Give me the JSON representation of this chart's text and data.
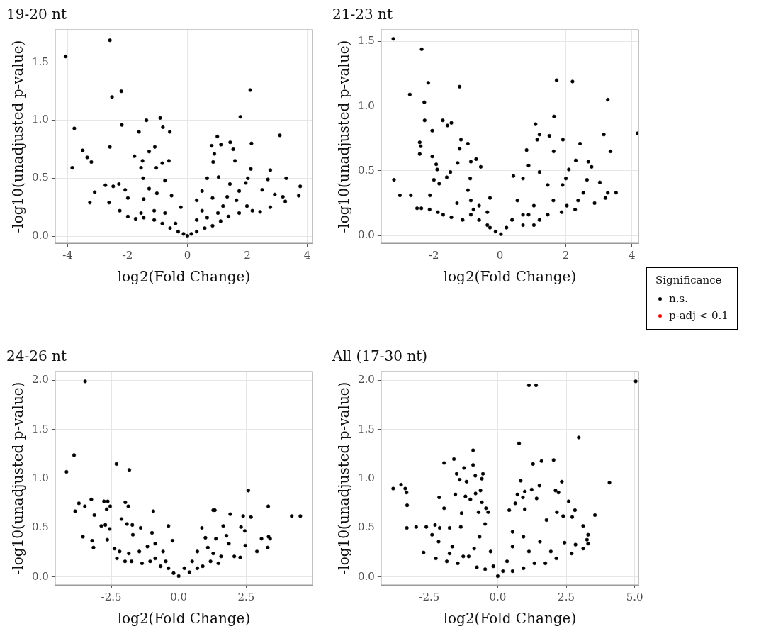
{
  "chart_data": [
    {
      "type": "scatter",
      "title": "19-20 nt",
      "xlabel": "log2(Fold Change)",
      "ylabel": "-log10(unadjusted p-value)",
      "xlim": [
        -4.42,
        4.18
      ],
      "ylim": [
        -0.06,
        1.78
      ],
      "xticks": [
        -4,
        -2,
        0,
        2,
        4
      ],
      "yticks": [
        {
          "value": 0,
          "label": "0.0"
        },
        {
          "value": 0.5,
          "label": "0.5"
        },
        {
          "value": 1,
          "label": "1.0"
        },
        {
          "value": 1.5,
          "label": "1.5"
        }
      ],
      "grid": true,
      "marker": "circle",
      "legend": false,
      "series": [
        {
          "color": "#000000",
          "x": [
            -4.07,
            -2.59,
            2.1,
            -2.21,
            -2.52,
            1.77,
            -0.91,
            -1.37,
            -3.78,
            -0.82,
            -2.19,
            -0.59,
            -1.62,
            3.09,
            1.0,
            1.43,
            2.14,
            -2.59,
            0.81,
            1.12,
            -1.09,
            -3.5,
            1.53,
            -1.28,
            -3.35,
            -1.77,
            -3.21,
            -1.5,
            -0.84,
            -0.62,
            0.9,
            1.59,
            0.86,
            -3.85,
            2.12,
            2.77,
            -1.55,
            -1.04,
            3.3,
            2.02,
            2.69,
            3.77,
            3.72,
            0.66,
            1.04,
            -0.75,
            -1.48,
            -2.74,
            -2.48,
            -2.29,
            -3.1,
            -3.26,
            -2.62,
            -2.08,
            2.5,
            2.92,
            3.19,
            3.27,
            2.77,
            2.43,
            1.95,
            1.73,
            1.64,
            1.33,
            1.42,
            0.84,
            0.49,
            0.31,
            -0.22,
            -0.53,
            -1.02,
            -1.28,
            -1.46,
            -1.99,
            -2.26,
            -1.99,
            -1.73,
            -1.46,
            -1.11,
            -0.84,
            -0.58,
            -0.31,
            -0.13,
            0,
            0.13,
            0.31,
            0.58,
            0.84,
            1.11,
            1.37,
            1.73,
            2.17,
            0.49,
            0.66,
            -0.75,
            -1.11,
            -1.55,
            0.31,
            -0.4,
            1.02,
            1.19,
            1.99
          ],
          "values": [
            1.55,
            1.69,
            1.26,
            1.25,
            1.2,
            1.03,
            1.02,
            1.0,
            0.93,
            0.94,
            0.96,
            0.9,
            0.9,
            0.87,
            0.86,
            0.81,
            0.8,
            0.77,
            0.78,
            0.79,
            0.77,
            0.74,
            0.75,
            0.73,
            0.68,
            0.69,
            0.64,
            0.65,
            0.63,
            0.65,
            0.71,
            0.65,
            0.64,
            0.59,
            0.58,
            0.57,
            0.59,
            0.59,
            0.5,
            0.5,
            0.49,
            0.43,
            0.35,
            0.5,
            0.51,
            0.48,
            0.5,
            0.44,
            0.43,
            0.45,
            0.38,
            0.29,
            0.29,
            0.4,
            0.4,
            0.36,
            0.34,
            0.3,
            0.25,
            0.21,
            0.46,
            0.39,
            0.31,
            0.34,
            0.45,
            0.33,
            0.39,
            0.31,
            0.25,
            0.35,
            0.37,
            0.41,
            0.32,
            0.33,
            0.22,
            0.17,
            0.15,
            0.16,
            0.14,
            0.11,
            0.07,
            0.04,
            0.02,
            0.004,
            0.02,
            0.04,
            0.07,
            0.09,
            0.13,
            0.17,
            0.2,
            0.22,
            0.22,
            0.16,
            0.2,
            0.22,
            0.2,
            0.14,
            0.11,
            0.2,
            0.26,
            0.26
          ]
        }
      ]
    },
    {
      "type": "scatter",
      "title": "21-23 nt",
      "xlabel": "log2(Fold Change)",
      "ylabel": "-log10(unadjusted p-value)",
      "xlim": [
        -3.6,
        4.2
      ],
      "ylim": [
        -0.06,
        1.59
      ],
      "xticks": [
        -2,
        0,
        2,
        4
      ],
      "yticks": [
        {
          "value": 0,
          "label": "0.0"
        },
        {
          "value": 0.5,
          "label": "0.5"
        },
        {
          "value": 1,
          "label": "1.0"
        },
        {
          "value": 1.5,
          "label": "1.5"
        }
      ],
      "grid": true,
      "marker": "circle",
      "legend": "right",
      "legend_title": "Significance",
      "series": [
        {
          "name": "n.s.",
          "color": "#000000",
          "x": [
            -3.23,
            -2.37,
            -2.17,
            -1.22,
            1.72,
            2.2,
            -2.73,
            3.27,
            -2.29,
            4.17,
            -2.28,
            -1.73,
            -1.59,
            -1.47,
            1.64,
            1.08,
            -2.05,
            3.15,
            1.2,
            1.5,
            1.91,
            1.13,
            -1.18,
            -2.43,
            -2.4,
            -0.97,
            2.43,
            -1.22,
            3.35,
            0.81,
            -2.43,
            1.63,
            -2.05,
            -0.72,
            -0.88,
            -1.93,
            -1.28,
            2.3,
            -1.9,
            -0.58,
            0.87,
            2.09,
            2.78,
            2.68,
            1.2,
            -1.5,
            -3.21,
            -3.03,
            -2.7,
            -2.12,
            -2.0,
            -1.84,
            -1.61,
            -0.9,
            0.41,
            0.7,
            1.45,
            1.9,
            2.0,
            2.64,
            3.03,
            3.52,
            3.27,
            2.87,
            3.2,
            2.53,
            2.37,
            2.28,
            2.03,
            1.87,
            1.62,
            1.45,
            1.2,
            0.87,
            1.03,
            0.7,
            0.53,
            0.37,
            0.2,
            0.03,
            -0.13,
            -0.38,
            -0.63,
            -0.88,
            -1.13,
            -1.47,
            -1.72,
            -1.88,
            -2.13,
            -2.38,
            -2.51,
            -1.3,
            -0.88,
            -0.63,
            -0.38,
            -0.3,
            -0.97,
            -0.8,
            0.7,
            1.03,
            -0.3
          ],
          "values": [
            1.52,
            1.44,
            1.18,
            1.15,
            1.2,
            1.19,
            1.09,
            1.05,
            1.03,
            0.79,
            0.89,
            0.89,
            0.85,
            0.87,
            0.92,
            0.86,
            0.81,
            0.78,
            0.78,
            0.77,
            0.74,
            0.74,
            0.74,
            0.72,
            0.69,
            0.71,
            0.71,
            0.67,
            0.65,
            0.66,
            0.63,
            0.65,
            0.61,
            0.59,
            0.57,
            0.55,
            0.56,
            0.58,
            0.51,
            0.53,
            0.54,
            0.51,
            0.53,
            0.57,
            0.49,
            0.49,
            0.43,
            0.31,
            0.31,
            0.31,
            0.43,
            0.4,
            0.45,
            0.44,
            0.46,
            0.44,
            0.39,
            0.39,
            0.44,
            0.43,
            0.41,
            0.33,
            0.33,
            0.25,
            0.29,
            0.33,
            0.27,
            0.2,
            0.23,
            0.18,
            0.27,
            0.16,
            0.12,
            0.16,
            0.23,
            0.16,
            0.27,
            0.12,
            0.06,
            0.01,
            0.03,
            0.08,
            0.12,
            0.16,
            0.12,
            0.14,
            0.16,
            0.18,
            0.2,
            0.21,
            0.21,
            0.25,
            0.27,
            0.23,
            0.18,
            0.29,
            0.35,
            0.2,
            0.08,
            0.08,
            0.06
          ]
        },
        {
          "name": "p-adj < 0.1",
          "color": "#ff0000"
        }
      ]
    },
    {
      "type": "scatter",
      "title": "24-26 nt",
      "xlabel": "log2(Fold Change)",
      "ylabel": "-log10(unadjusted p-value)",
      "xlim": [
        -4.58,
        4.96
      ],
      "ylim": [
        -0.08,
        2.09
      ],
      "xticks": [
        {
          "value": -2.5,
          "label": "-2.5"
        },
        {
          "value": 0,
          "label": "0.0"
        },
        {
          "value": 2.5,
          "label": "2.5"
        }
      ],
      "yticks": [
        {
          "value": 0,
          "label": "0.0"
        },
        {
          "value": 0.5,
          "label": "0.5"
        },
        {
          "value": 1,
          "label": "1.0"
        },
        {
          "value": 1.5,
          "label": "1.5"
        },
        {
          "value": 2,
          "label": "2.0"
        }
      ],
      "grid": true,
      "marker": "circle",
      "legend": false,
      "series": [
        {
          "color": "#000000",
          "x": [
            -3.47,
            -3.88,
            -4.16,
            -2.31,
            -1.83,
            2.58,
            -3.24,
            -3.7,
            -3.48,
            -3.84,
            -2.77,
            -2.63,
            -2.54,
            -2.67,
            -1.98,
            -1.87,
            -0.94,
            -3.13,
            3.32,
            1.28,
            1.34,
            1.91,
            2.39,
            2.68,
            4.19,
            4.51,
            -2.12,
            -2.87,
            -2.72,
            -2.56,
            -1.92,
            -1.72,
            -1.41,
            -0.38,
            0.86,
            1.65,
            2.31,
            2.45,
            -3.55,
            -3.21,
            -3.16,
            -2.65,
            -0.99,
            -0.23,
            -1.7,
            3.33,
            3.39,
            3.07,
            3.3,
            2.9,
            2.47,
            2.28,
            1.77,
            1.38,
            0.99,
            1.08,
            1.86,
            2.06,
            1.57,
            1.28,
            0.69,
            0.5,
            0.21,
            0,
            -0.19,
            -0.38,
            -0.67,
            -0.87,
            -1.06,
            -1.36,
            -1.75,
            -1.99,
            -2.29,
            -2.38,
            -2.19,
            -1.85,
            -1.46,
            -1.16,
            -0.87,
            -0.58,
            -0.48,
            0.89,
            1.18,
            1.47,
            0.69,
            0.4
          ],
          "values": [
            1.99,
            1.24,
            1.07,
            1.15,
            1.09,
            0.88,
            0.79,
            0.75,
            0.72,
            0.67,
            0.77,
            0.77,
            0.72,
            0.69,
            0.76,
            0.72,
            0.67,
            0.63,
            0.72,
            0.68,
            0.68,
            0.64,
            0.62,
            0.61,
            0.62,
            0.62,
            0.59,
            0.52,
            0.53,
            0.49,
            0.54,
            0.53,
            0.5,
            0.52,
            0.5,
            0.52,
            0.51,
            0.47,
            0.41,
            0.37,
            0.3,
            0.38,
            0.45,
            0.37,
            0.43,
            0.41,
            0.39,
            0.39,
            0.3,
            0.26,
            0.32,
            0.2,
            0.42,
            0.39,
            0.4,
            0.3,
            0.34,
            0.21,
            0.21,
            0.24,
            0.26,
            0.16,
            0.09,
            0.01,
            0.04,
            0.09,
            0.11,
            0.19,
            0.16,
            0.14,
            0.16,
            0.16,
            0.19,
            0.29,
            0.26,
            0.24,
            0.26,
            0.31,
            0.34,
            0.26,
            0.16,
            0.11,
            0.16,
            0.14,
            0.09,
            0.05
          ]
        }
      ]
    },
    {
      "type": "scatter",
      "title": "All (17-30 nt)",
      "xlabel": "log2(Fold Change)",
      "ylabel": "-log10(unadjusted p-value)",
      "xlim": [
        -4.26,
        5.14
      ],
      "ylim": [
        -0.08,
        2.09
      ],
      "xticks": [
        {
          "value": -2.5,
          "label": "-2.5"
        },
        {
          "value": 0,
          "label": "0.0"
        },
        {
          "value": 2.5,
          "label": "2.5"
        },
        {
          "value": 5,
          "label": "5.0"
        }
      ],
      "yticks": [
        {
          "value": 0,
          "label": "0.0"
        },
        {
          "value": 0.5,
          "label": "0.5"
        },
        {
          "value": 1,
          "label": "1.0"
        },
        {
          "value": 1.5,
          "label": "1.5"
        },
        {
          "value": 2,
          "label": "2.0"
        }
      ],
      "grid": true,
      "marker": "circle",
      "legend": false,
      "series": [
        {
          "color": "#000000",
          "x": [
            5.04,
            1.14,
            1.4,
            2.96,
            0.78,
            -0.9,
            -1.6,
            -1.96,
            -0.9,
            -1.23,
            1.29,
            1.6,
            2.04,
            -1.5,
            -0.54,
            -0.82,
            -0.58,
            -1.39,
            -1.14,
            0.84,
            -3.82,
            -3.53,
            -3.38,
            -3.33,
            -3.31,
            -3.32,
            -2.98,
            -2.61,
            4.08,
            2.34,
            1.52,
            1.24,
            0.99,
            2.11,
            2.22,
            -0.63,
            -0.81,
            -1.55,
            -2.14,
            -1.18,
            -1.0,
            0.72,
            0.92,
            1.42,
            2.59,
            -0.58,
            0.64,
            -1.96,
            -0.43,
            0.42,
            0.99,
            2.82,
            2.16,
            3.55,
            -1.32,
            -0.7,
            -0.35,
            1.78,
            2.39,
            2.72,
            3.12,
            -2.12,
            -1.76,
            -1.35,
            -2.29,
            -2.4,
            -2.16,
            3.3,
            3.26,
            3.3,
            3.12,
            2.84,
            2.44,
            2.7,
            -2.71,
            -2.26,
            -1.86,
            -1.46,
            -1.06,
            -0.86,
            -0.66,
            -0.46,
            -0.26,
            -0.16,
            0,
            0.19,
            0.34,
            0.54,
            0.54,
            0.94,
            1.14,
            1.54,
            1.94,
            2.14,
            1.74,
            1.34,
            0.94,
            0.54,
            -0.46,
            -0.76,
            -1.26,
            -1.66,
            -1.76
          ],
          "values": [
            1.99,
            1.95,
            1.95,
            1.42,
            1.36,
            1.29,
            1.2,
            1.16,
            1.14,
            1.11,
            1.15,
            1.18,
            1.19,
            1.05,
            1.05,
            1.03,
            1.0,
            0.99,
            0.97,
            0.98,
            0.9,
            0.94,
            0.9,
            0.86,
            0.73,
            0.5,
            0.51,
            0.51,
            0.96,
            0.97,
            0.93,
            0.89,
            0.87,
            0.88,
            0.86,
            0.88,
            0.85,
            0.84,
            0.81,
            0.82,
            0.79,
            0.84,
            0.81,
            0.8,
            0.77,
            0.76,
            0.75,
            0.7,
            0.7,
            0.68,
            0.69,
            0.68,
            0.66,
            0.63,
            0.65,
            0.66,
            0.66,
            0.58,
            0.62,
            0.61,
            0.52,
            0.5,
            0.5,
            0.51,
            0.53,
            0.43,
            0.36,
            0.43,
            0.38,
            0.34,
            0.29,
            0.33,
            0.35,
            0.24,
            0.25,
            0.19,
            0.16,
            0.14,
            0.21,
            0.29,
            0.41,
            0.54,
            0.26,
            0.11,
            0.01,
            0.06,
            0.16,
            0.31,
            0.46,
            0.41,
            0.26,
            0.36,
            0.26,
            0.19,
            0.14,
            0.14,
            0.09,
            0.06,
            0.08,
            0.1,
            0.21,
            0.31,
            0.24
          ]
        }
      ]
    }
  ]
}
